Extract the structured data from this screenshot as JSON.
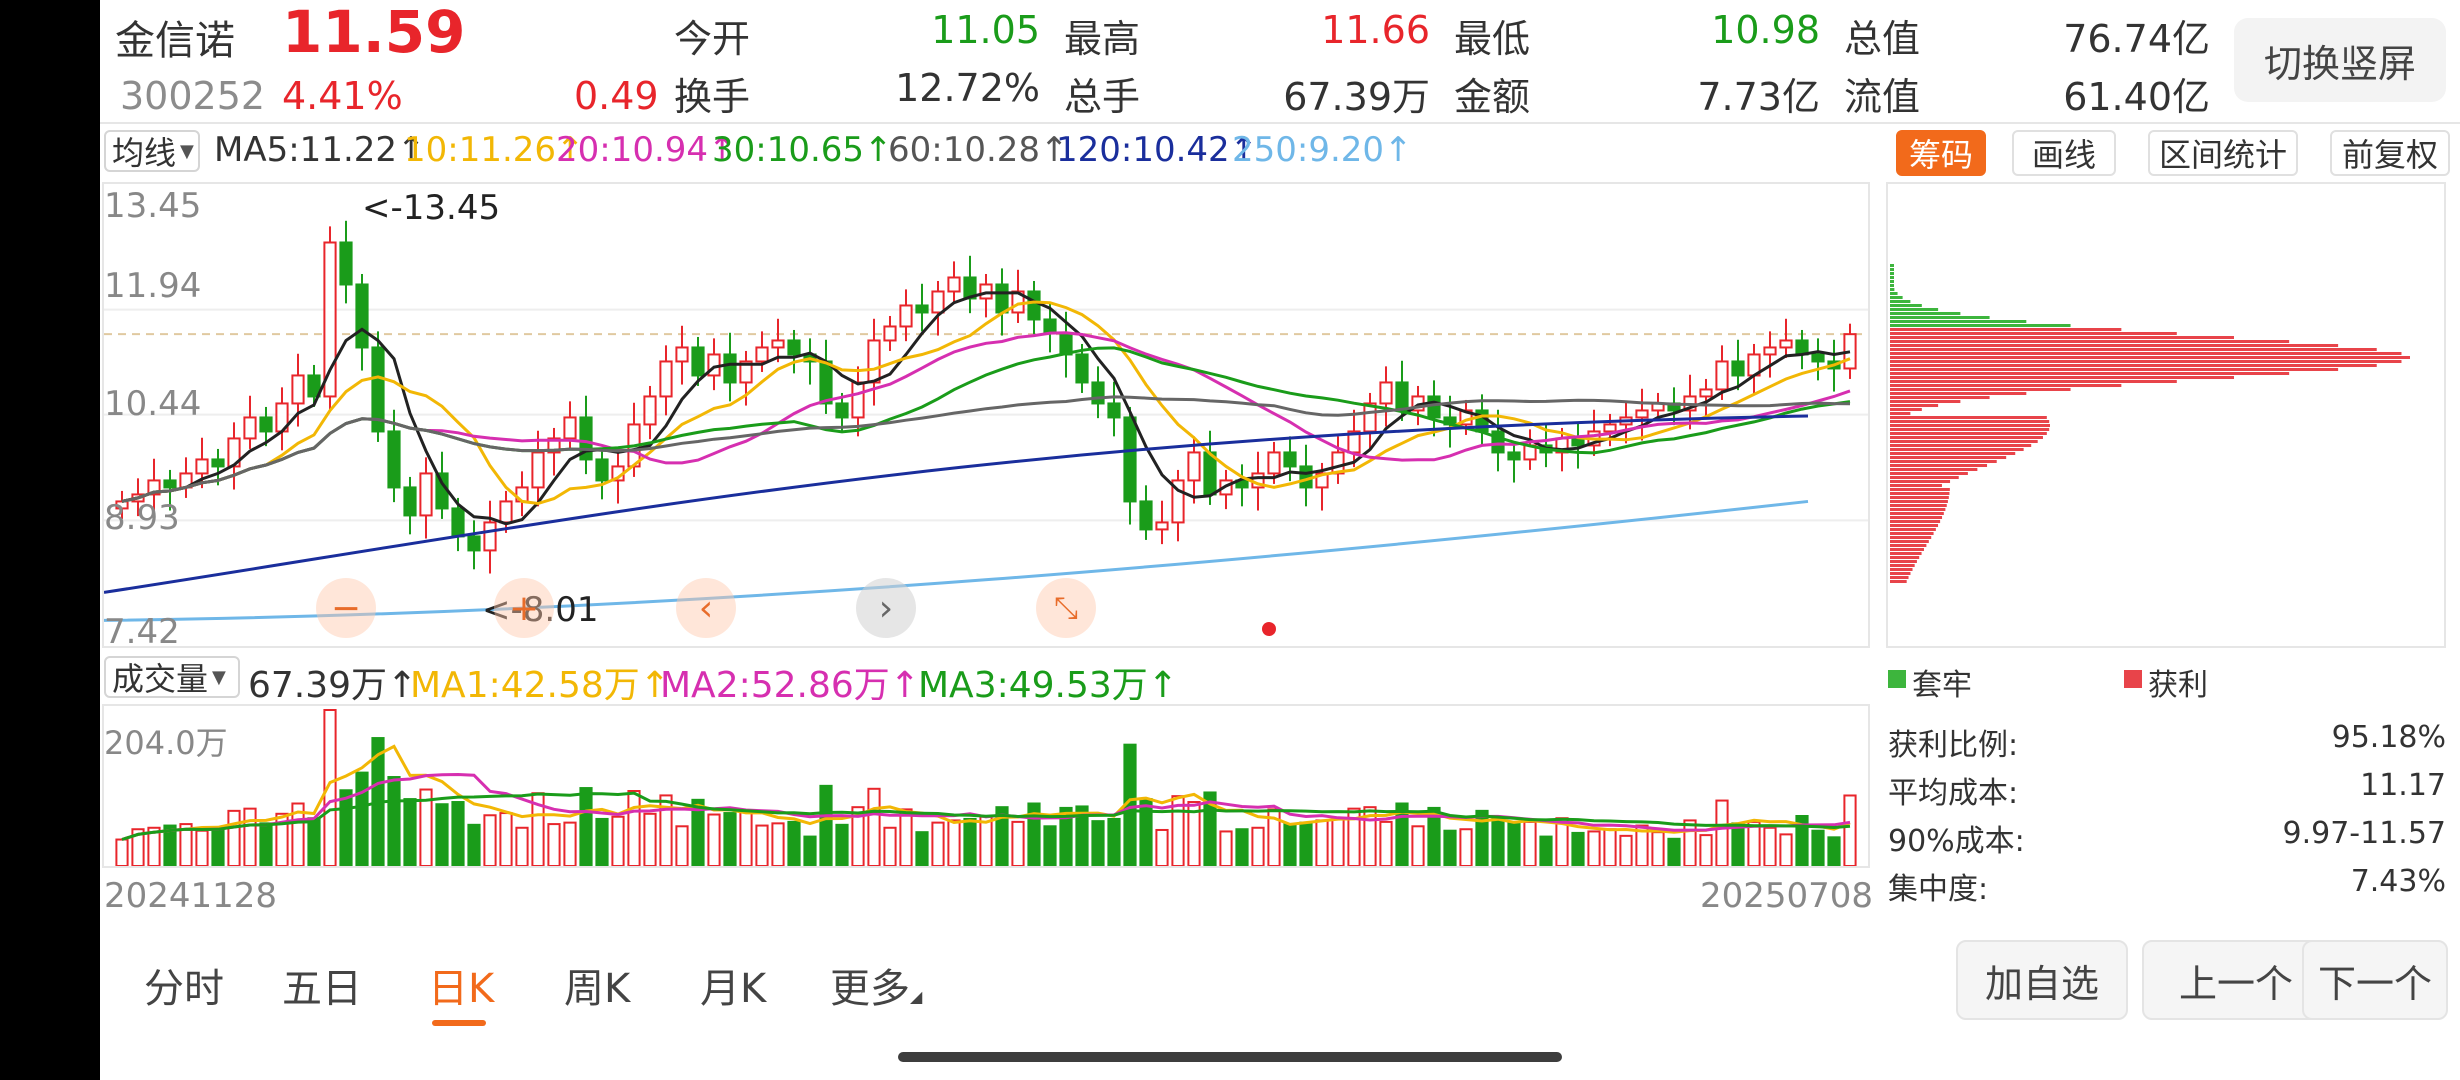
{
  "stock": {
    "name": "金信诺",
    "price": "11.59",
    "code": "300252",
    "change_pct": "4.41%",
    "change": "0.49"
  },
  "quote": {
    "open_label": "今开",
    "open": "11.05",
    "high_label": "最高",
    "high": "11.66",
    "low_label": "最低",
    "low": "10.98",
    "total_value_label": "总值",
    "total_value": "76.74亿",
    "turnover_label": "换手",
    "turnover": "12.72%",
    "volume_label": "总手",
    "volume": "67.39万",
    "amount_label": "金额",
    "amount": "7.73亿",
    "float_value_label": "流值",
    "float_value": "61.40亿"
  },
  "switch_button": "切换竖屏",
  "ma_bar": {
    "selector": "均线",
    "ma5": "MA5:11.22↑",
    "ma10": "10:11.26↑",
    "ma20": "20:10.94↑",
    "ma30": "30:10.65↑",
    "ma60": "60:10.28↑",
    "ma120": "120:10.42↑",
    "ma250": "250:9.20↑",
    "colors": {
      "ma5": "#333333",
      "ma10": "#f2b705",
      "ma20": "#d62fb0",
      "ma30": "#1a9c1a",
      "ma60": "#555555",
      "ma120": "#1a2e9c",
      "ma250": "#6fb7e8"
    }
  },
  "right_tabs": [
    "筹码",
    "画线",
    "区间统计",
    "前复权"
  ],
  "price_axis": [
    "13.45",
    "11.94",
    "10.44",
    "8.93",
    "7.42"
  ],
  "price_annotations": {
    "high": "<-13.45",
    "low": "<-8.01"
  },
  "volume_bar": {
    "selector": "成交量",
    "vol": "67.39万↑",
    "ma1": "MA1:42.58万↑",
    "ma2": "MA2:52.86万↑",
    "ma3": "MA3:49.53万↑",
    "axis_max": "204.0万"
  },
  "dates": {
    "start": "20241128",
    "end": "20250708"
  },
  "chip": {
    "legend_trapped": "套牢",
    "legend_profit": "获利",
    "stats": [
      {
        "label": "获利比例:",
        "value": "95.18%"
      },
      {
        "label": "平均成本:",
        "value": "11.17"
      },
      {
        "label": "90%成本:",
        "value": "9.97-11.57"
      },
      {
        "label": "集中度:",
        "value": "7.43%"
      }
    ]
  },
  "period_tabs": [
    "分时",
    "五日",
    "日K",
    "周K",
    "月K",
    "更多"
  ],
  "active_period": "日K",
  "actions": [
    "加自选",
    "上一个",
    "下一个"
  ],
  "nav_icons": [
    "minus-icon",
    "plus-icon",
    "chevron-left-icon",
    "chevron-right-icon",
    "compress-icon"
  ],
  "chart_data": {
    "type": "candlestick",
    "range": {
      "start": "20241128",
      "end": "20250708"
    },
    "price_ylim": [
      7.42,
      13.45
    ],
    "close_series": [
      9.2,
      9.3,
      9.5,
      9.4,
      9.6,
      9.8,
      9.7,
      10.1,
      10.4,
      10.2,
      10.6,
      11.0,
      10.7,
      12.9,
      12.3,
      11.4,
      10.2,
      9.4,
      9.0,
      9.6,
      9.1,
      8.7,
      8.5,
      8.9,
      9.2,
      9.4,
      9.9,
      10.1,
      10.4,
      9.8,
      9.5,
      9.7,
      10.3,
      10.7,
      11.2,
      11.4,
      11.0,
      11.3,
      10.9,
      11.2,
      11.4,
      11.5,
      11.3,
      11.2,
      10.6,
      10.4,
      10.9,
      11.5,
      11.7,
      12.0,
      11.9,
      12.2,
      12.4,
      12.1,
      12.3,
      11.9,
      12.2,
      11.8,
      11.6,
      11.3,
      10.9,
      10.6,
      10.4,
      9.2,
      8.8,
      8.9,
      9.5,
      9.9,
      9.3,
      9.5,
      9.4,
      9.6,
      9.9,
      9.7,
      9.4,
      9.6,
      9.9,
      10.2,
      10.6,
      10.9,
      10.5,
      10.7,
      10.4,
      10.3,
      10.5,
      10.2,
      9.9,
      9.8,
      10.0,
      9.9,
      10.1,
      10.0,
      10.2,
      10.3,
      10.4,
      10.5,
      10.6,
      10.5,
      10.7,
      10.8,
      11.2,
      11.0,
      11.3,
      11.4,
      11.5,
      11.3,
      11.2,
      11.1,
      11.59
    ],
    "ma_lines": {
      "MA5": 11.22,
      "MA10": 11.26,
      "MA20": 10.94,
      "MA30": 10.65,
      "MA60": 10.28,
      "MA120": 10.42,
      "MA250": 9.2
    },
    "volume": {
      "ylim": [
        0,
        204.0
      ],
      "unit": "万",
      "last": 67.39,
      "MA1": 42.58,
      "MA2": 52.86,
      "MA3": 49.53
    }
  }
}
